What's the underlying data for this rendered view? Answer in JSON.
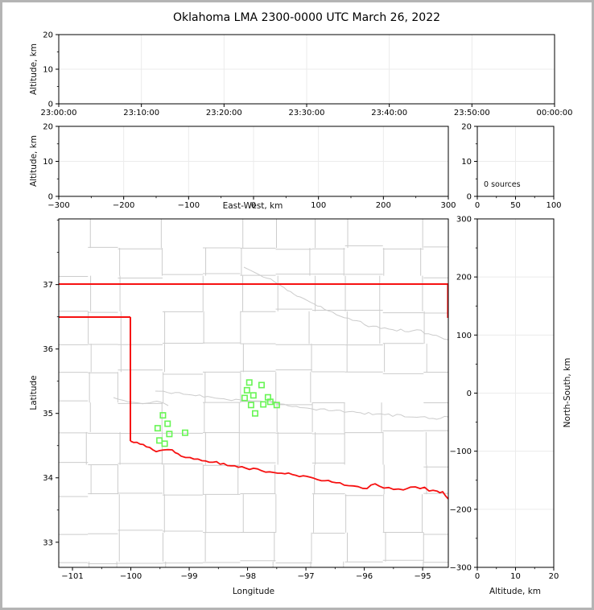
{
  "title": "Oklahoma LMA 2300-0000 UTC March 26, 2022",
  "colors": {
    "state_border": "#f61111",
    "county_line": "#cccccc",
    "river_line": "#cccccc",
    "source_marker": "#67f554",
    "gridline": "#ebebeb",
    "frame": "#000000"
  },
  "chart_data": [
    {
      "id": "time_height",
      "type": "scatter",
      "title": "Oklahoma LMA 2300-0000 UTC March 26, 2022",
      "xlabel": "",
      "ylabel": "Altitude, km",
      "xticks": [
        "23:00:00",
        "23:10:00",
        "23:20:00",
        "23:30:00",
        "23:40:00",
        "23:50:00",
        "00:00:00"
      ],
      "ylim": [
        0,
        20
      ],
      "yticks": [
        0,
        10,
        20
      ],
      "grid": true,
      "points": []
    },
    {
      "id": "east_west_height",
      "type": "scatter",
      "xlabel": "East-West, km",
      "ylabel": "Altitude, km",
      "xlim": [
        -300,
        300
      ],
      "xticks": [
        -300,
        -200,
        -100,
        0,
        100,
        200,
        300
      ],
      "ylim": [
        0,
        20
      ],
      "yticks": [
        0,
        10,
        20
      ],
      "grid": true,
      "points": []
    },
    {
      "id": "altitude_histogram",
      "type": "histogram",
      "xlabel": "",
      "ylabel": "",
      "xlim": [
        0,
        100
      ],
      "xticks": [
        0,
        50,
        100
      ],
      "ylim": [
        0,
        20
      ],
      "yticks": [
        0,
        10,
        20
      ],
      "annotation": "0 sources",
      "grid": true,
      "points": []
    },
    {
      "id": "plan_view_map",
      "type": "scatter",
      "xlabel": "Longitude",
      "ylabel": "Latitude",
      "xlim": [
        -101.235,
        -94.56
      ],
      "xticks": [
        -101,
        -100,
        -99,
        -98,
        -97,
        -96,
        -95
      ],
      "ylim": [
        32.61,
        38.02
      ],
      "yticks": [
        33,
        34,
        35,
        36,
        37
      ],
      "marker": "open-square",
      "grid": false,
      "points": [
        [
          -97.97,
          35.48
        ],
        [
          -97.76,
          35.44
        ],
        [
          -98.01,
          35.36
        ],
        [
          -97.9,
          35.28
        ],
        [
          -98.05,
          35.24
        ],
        [
          -97.65,
          35.25
        ],
        [
          -97.61,
          35.18
        ],
        [
          -97.94,
          35.13
        ],
        [
          -97.73,
          35.14
        ],
        [
          -97.5,
          35.13
        ],
        [
          -97.87,
          35.0
        ],
        [
          -99.45,
          34.97
        ],
        [
          -99.37,
          34.84
        ],
        [
          -99.54,
          34.77
        ],
        [
          -99.34,
          34.68
        ],
        [
          -99.07,
          34.7
        ],
        [
          -99.51,
          34.58
        ],
        [
          -99.42,
          34.53
        ]
      ]
    },
    {
      "id": "north_south_height",
      "type": "scatter",
      "xlabel": "Altitude, km",
      "ylabel": "North-South, km",
      "xlim": [
        0,
        20
      ],
      "xticks": [
        0,
        10,
        20
      ],
      "ylim": [
        -300,
        300
      ],
      "yticks": [
        -300,
        -200,
        -100,
        0,
        100,
        200,
        300
      ],
      "grid": true,
      "points": []
    }
  ]
}
